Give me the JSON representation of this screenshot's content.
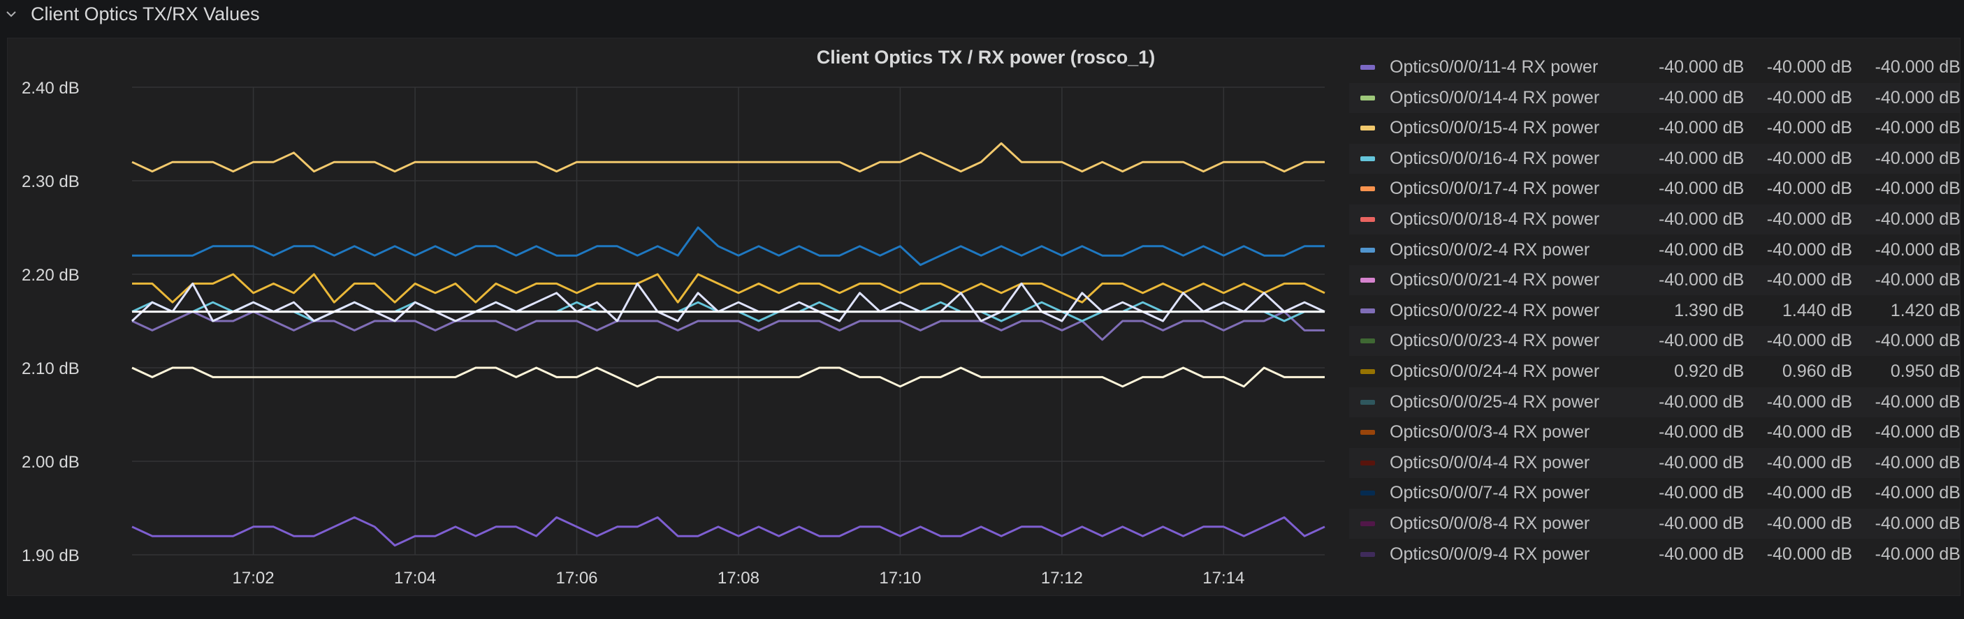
{
  "row": {
    "title": "Client Optics TX/RX Values"
  },
  "panel": {
    "title": "Client Optics TX / RX power (rosco_1)"
  },
  "legend": {
    "rows": [
      {
        "name": "Optics0/0/0/11-4 RX power",
        "v1": "-40.000 dB",
        "v2": "-40.000 dB",
        "v3": "-40.000 dB",
        "color": "#7b68c4"
      },
      {
        "name": "Optics0/0/0/14-4 RX power",
        "v1": "-40.000 dB",
        "v2": "-40.000 dB",
        "v3": "-40.000 dB",
        "color": "#9ec87a"
      },
      {
        "name": "Optics0/0/0/15-4 RX power",
        "v1": "-40.000 dB",
        "v2": "-40.000 dB",
        "v3": "-40.000 dB",
        "color": "#f2c96d"
      },
      {
        "name": "Optics0/0/0/16-4 RX power",
        "v1": "-40.000 dB",
        "v2": "-40.000 dB",
        "v3": "-40.000 dB",
        "color": "#65c5db"
      },
      {
        "name": "Optics0/0/0/17-4 RX power",
        "v1": "-40.000 dB",
        "v2": "-40.000 dB",
        "v3": "-40.000 dB",
        "color": "#f9934e"
      },
      {
        "name": "Optics0/0/0/18-4 RX power",
        "v1": "-40.000 dB",
        "v2": "-40.000 dB",
        "v3": "-40.000 dB",
        "color": "#ea6460"
      },
      {
        "name": "Optics0/0/0/2-4 RX power",
        "v1": "-40.000 dB",
        "v2": "-40.000 dB",
        "v3": "-40.000 dB",
        "color": "#5195ce"
      },
      {
        "name": "Optics0/0/0/21-4 RX power",
        "v1": "-40.000 dB",
        "v2": "-40.000 dB",
        "v3": "-40.000 dB",
        "color": "#d683ce"
      },
      {
        "name": "Optics0/0/0/22-4 RX power",
        "v1": "1.390 dB",
        "v2": "1.440 dB",
        "v3": "1.420 dB",
        "color": "#806eb7"
      },
      {
        "name": "Optics0/0/0/23-4 RX power",
        "v1": "-40.000 dB",
        "v2": "-40.000 dB",
        "v3": "-40.000 dB",
        "color": "#3f6833"
      },
      {
        "name": "Optics0/0/0/24-4 RX power",
        "v1": "0.920 dB",
        "v2": "0.960 dB",
        "v3": "0.950 dB",
        "color": "#967302"
      },
      {
        "name": "Optics0/0/0/25-4 RX power",
        "v1": "-40.000 dB",
        "v2": "-40.000 dB",
        "v3": "-40.000 dB",
        "color": "#2f575e"
      },
      {
        "name": "Optics0/0/0/3-4 RX power",
        "v1": "-40.000 dB",
        "v2": "-40.000 dB",
        "v3": "-40.000 dB",
        "color": "#99440a"
      },
      {
        "name": "Optics0/0/0/4-4 RX power",
        "v1": "-40.000 dB",
        "v2": "-40.000 dB",
        "v3": "-40.000 dB",
        "color": "#58140c"
      },
      {
        "name": "Optics0/0/0/7-4 RX power",
        "v1": "-40.000 dB",
        "v2": "-40.000 dB",
        "v3": "-40.000 dB",
        "color": "#052b51"
      },
      {
        "name": "Optics0/0/0/8-4 RX power",
        "v1": "-40.000 dB",
        "v2": "-40.000 dB",
        "v3": "-40.000 dB",
        "color": "#511749"
      },
      {
        "name": "Optics0/0/0/9-4 RX power",
        "v1": "-40.000 dB",
        "v2": "-40.000 dB",
        "v3": "-40.000 dB",
        "color": "#3f2b5b"
      }
    ]
  },
  "chart_data": {
    "type": "line",
    "title": "Client Optics TX / RX power (rosco_1)",
    "ylim": [
      1.9,
      2.4
    ],
    "yticks": [
      "2.40 dB",
      "2.30 dB",
      "2.20 dB",
      "2.10 dB",
      "2.00 dB",
      "1.90 dB"
    ],
    "xlim": [
      "17:00:30",
      "17:15:15"
    ],
    "xticks": [
      "17:02",
      "17:04",
      "17:06",
      "17:08",
      "17:10",
      "17:12",
      "17:14"
    ],
    "grid": true,
    "legend_position": "right",
    "x": [
      "17:00:30",
      "17:00:45",
      "17:01:00",
      "17:01:15",
      "17:01:30",
      "17:01:45",
      "17:02:00",
      "17:02:15",
      "17:02:30",
      "17:02:45",
      "17:03:00",
      "17:03:15",
      "17:03:30",
      "17:03:45",
      "17:04:00",
      "17:04:15",
      "17:04:30",
      "17:04:45",
      "17:05:00",
      "17:05:15",
      "17:05:30",
      "17:05:45",
      "17:06:00",
      "17:06:15",
      "17:06:30",
      "17:06:45",
      "17:07:00",
      "17:07:15",
      "17:07:30",
      "17:07:45",
      "17:08:00",
      "17:08:15",
      "17:08:30",
      "17:08:45",
      "17:09:00",
      "17:09:15",
      "17:09:30",
      "17:09:45",
      "17:10:00",
      "17:10:15",
      "17:10:30",
      "17:10:45",
      "17:11:00",
      "17:11:15",
      "17:11:30",
      "17:11:45",
      "17:12:00",
      "17:12:15",
      "17:12:30",
      "17:12:45",
      "17:13:00",
      "17:13:15",
      "17:13:30",
      "17:13:45",
      "17:14:00",
      "17:14:15",
      "17:14:30",
      "17:14:45",
      "17:15:00",
      "17:15:15"
    ],
    "series": [
      {
        "color": "#f2c96d",
        "values": [
          2.32,
          2.31,
          2.32,
          2.32,
          2.32,
          2.31,
          2.32,
          2.32,
          2.33,
          2.31,
          2.32,
          2.32,
          2.32,
          2.31,
          2.32,
          2.32,
          2.32,
          2.32,
          2.32,
          2.32,
          2.32,
          2.31,
          2.32,
          2.32,
          2.32,
          2.32,
          2.32,
          2.32,
          2.32,
          2.32,
          2.32,
          2.32,
          2.32,
          2.32,
          2.32,
          2.32,
          2.31,
          2.32,
          2.32,
          2.33,
          2.32,
          2.31,
          2.32,
          2.34,
          2.32,
          2.32,
          2.32,
          2.31,
          2.32,
          2.31,
          2.32,
          2.32,
          2.32,
          2.31,
          2.32,
          2.32,
          2.32,
          2.31,
          2.32,
          2.32
        ]
      },
      {
        "color": "#1f78c1",
        "values": [
          2.22,
          2.22,
          2.22,
          2.22,
          2.23,
          2.23,
          2.23,
          2.22,
          2.23,
          2.23,
          2.22,
          2.23,
          2.22,
          2.23,
          2.22,
          2.23,
          2.22,
          2.23,
          2.23,
          2.22,
          2.23,
          2.22,
          2.22,
          2.23,
          2.23,
          2.22,
          2.23,
          2.22,
          2.25,
          2.23,
          2.22,
          2.23,
          2.22,
          2.23,
          2.22,
          2.22,
          2.23,
          2.22,
          2.23,
          2.21,
          2.22,
          2.23,
          2.22,
          2.23,
          2.22,
          2.23,
          2.22,
          2.23,
          2.22,
          2.22,
          2.23,
          2.23,
          2.22,
          2.23,
          2.22,
          2.23,
          2.22,
          2.22,
          2.23,
          2.23
        ]
      },
      {
        "color": "#eab839",
        "values": [
          2.19,
          2.19,
          2.17,
          2.19,
          2.19,
          2.2,
          2.18,
          2.19,
          2.18,
          2.2,
          2.17,
          2.19,
          2.19,
          2.17,
          2.19,
          2.18,
          2.19,
          2.17,
          2.19,
          2.18,
          2.19,
          2.19,
          2.18,
          2.19,
          2.19,
          2.19,
          2.2,
          2.17,
          2.2,
          2.19,
          2.18,
          2.19,
          2.18,
          2.19,
          2.19,
          2.18,
          2.19,
          2.19,
          2.18,
          2.19,
          2.19,
          2.18,
          2.19,
          2.18,
          2.19,
          2.19,
          2.18,
          2.17,
          2.19,
          2.19,
          2.18,
          2.19,
          2.18,
          2.19,
          2.18,
          2.19,
          2.18,
          2.19,
          2.19,
          2.18
        ]
      },
      {
        "color": "#806eb7",
        "values": [
          2.15,
          2.14,
          2.15,
          2.16,
          2.15,
          2.15,
          2.16,
          2.15,
          2.14,
          2.15,
          2.15,
          2.14,
          2.15,
          2.15,
          2.15,
          2.14,
          2.15,
          2.15,
          2.15,
          2.14,
          2.15,
          2.15,
          2.15,
          2.14,
          2.15,
          2.15,
          2.15,
          2.14,
          2.15,
          2.15,
          2.15,
          2.14,
          2.15,
          2.15,
          2.15,
          2.14,
          2.15,
          2.15,
          2.15,
          2.14,
          2.15,
          2.15,
          2.15,
          2.14,
          2.15,
          2.15,
          2.14,
          2.15,
          2.13,
          2.15,
          2.15,
          2.14,
          2.15,
          2.15,
          2.14,
          2.15,
          2.15,
          2.16,
          2.14,
          2.14
        ]
      },
      {
        "color": "#65c5db",
        "values": [
          2.16,
          2.17,
          2.16,
          2.16,
          2.17,
          2.16,
          2.17,
          2.16,
          2.16,
          2.15,
          2.16,
          2.17,
          2.16,
          2.16,
          2.17,
          2.16,
          2.16,
          2.16,
          2.17,
          2.16,
          2.16,
          2.16,
          2.17,
          2.16,
          2.16,
          2.16,
          2.16,
          2.16,
          2.17,
          2.16,
          2.16,
          2.15,
          2.16,
          2.16,
          2.17,
          2.16,
          2.16,
          2.16,
          2.16,
          2.16,
          2.17,
          2.16,
          2.16,
          2.15,
          2.16,
          2.17,
          2.16,
          2.15,
          2.16,
          2.16,
          2.17,
          2.16,
          2.16,
          2.16,
          2.17,
          2.16,
          2.16,
          2.15,
          2.16,
          2.16
        ]
      },
      {
        "color": "#e0e4ff",
        "values": [
          2.15,
          2.17,
          2.16,
          2.19,
          2.15,
          2.16,
          2.17,
          2.16,
          2.17,
          2.15,
          2.16,
          2.17,
          2.16,
          2.15,
          2.17,
          2.16,
          2.15,
          2.16,
          2.17,
          2.16,
          2.17,
          2.18,
          2.16,
          2.17,
          2.15,
          2.19,
          2.16,
          2.15,
          2.18,
          2.16,
          2.17,
          2.16,
          2.16,
          2.17,
          2.16,
          2.15,
          2.18,
          2.16,
          2.17,
          2.16,
          2.16,
          2.18,
          2.15,
          2.16,
          2.19,
          2.16,
          2.15,
          2.18,
          2.16,
          2.17,
          2.16,
          2.15,
          2.18,
          2.16,
          2.17,
          2.16,
          2.18,
          2.16,
          2.17,
          2.16
        ]
      },
      {
        "color": "#ffffff",
        "values": [
          2.16,
          2.16,
          2.16,
          2.16,
          2.16,
          2.16,
          2.16,
          2.16,
          2.16,
          2.16,
          2.16,
          2.16,
          2.16,
          2.16,
          2.16,
          2.16,
          2.16,
          2.16,
          2.16,
          2.16,
          2.16,
          2.16,
          2.16,
          2.16,
          2.16,
          2.16,
          2.16,
          2.16,
          2.16,
          2.16,
          2.16,
          2.16,
          2.16,
          2.16,
          2.16,
          2.16,
          2.16,
          2.16,
          2.16,
          2.16,
          2.16,
          2.16,
          2.16,
          2.16,
          2.16,
          2.16,
          2.16,
          2.16,
          2.16,
          2.16,
          2.16,
          2.16,
          2.16,
          2.16,
          2.16,
          2.16,
          2.16,
          2.16,
          2.16,
          2.16
        ]
      },
      {
        "color": "#fff6db",
        "values": [
          2.1,
          2.09,
          2.1,
          2.1,
          2.09,
          2.09,
          2.09,
          2.09,
          2.09,
          2.09,
          2.09,
          2.09,
          2.09,
          2.09,
          2.09,
          2.09,
          2.09,
          2.1,
          2.1,
          2.09,
          2.1,
          2.09,
          2.09,
          2.1,
          2.09,
          2.08,
          2.09,
          2.09,
          2.09,
          2.09,
          2.09,
          2.09,
          2.09,
          2.09,
          2.1,
          2.1,
          2.09,
          2.09,
          2.08,
          2.09,
          2.09,
          2.1,
          2.09,
          2.09,
          2.09,
          2.09,
          2.09,
          2.09,
          2.09,
          2.08,
          2.09,
          2.09,
          2.1,
          2.09,
          2.09,
          2.08,
          2.1,
          2.09,
          2.09,
          2.09
        ]
      },
      {
        "color": "#7e5fd1",
        "values": [
          1.93,
          1.92,
          1.92,
          1.92,
          1.92,
          1.92,
          1.93,
          1.93,
          1.92,
          1.92,
          1.93,
          1.94,
          1.93,
          1.91,
          1.92,
          1.92,
          1.93,
          1.92,
          1.93,
          1.93,
          1.92,
          1.94,
          1.93,
          1.92,
          1.93,
          1.93,
          1.94,
          1.92,
          1.92,
          1.93,
          1.92,
          1.93,
          1.92,
          1.93,
          1.92,
          1.92,
          1.93,
          1.93,
          1.92,
          1.93,
          1.92,
          1.92,
          1.93,
          1.92,
          1.93,
          1.93,
          1.92,
          1.93,
          1.92,
          1.93,
          1.92,
          1.93,
          1.92,
          1.93,
          1.93,
          1.92,
          1.93,
          1.94,
          1.92,
          1.93
        ]
      }
    ]
  }
}
